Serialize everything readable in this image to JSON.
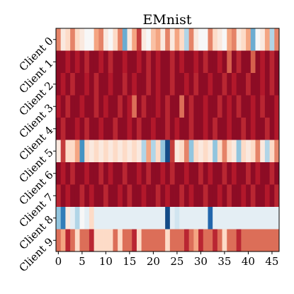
{
  "chart_data": {
    "type": "heatmap",
    "title": "EMnist",
    "xlabel": "",
    "ylabel": "",
    "rows": [
      "Client 0",
      "Client 1",
      "Client 2",
      "Client 3",
      "Client 4",
      "Client 5",
      "Client 6",
      "Client 7",
      "Client 8",
      "Client 9"
    ],
    "columns": [
      0,
      1,
      2,
      3,
      4,
      5,
      6,
      7,
      8,
      9,
      10,
      11,
      12,
      13,
      14,
      15,
      16,
      17,
      18,
      19,
      20,
      21,
      22,
      23,
      24,
      25,
      26,
      27,
      28,
      29,
      30,
      31,
      32,
      33,
      34,
      35,
      36,
      37,
      38,
      39,
      40,
      41,
      42,
      43,
      44,
      45,
      46
    ],
    "x_ticks": [
      "0",
      "5",
      "10",
      "15",
      "20",
      "25",
      "30",
      "35",
      "40",
      "45"
    ],
    "x_tick_positions": [
      0,
      5,
      10,
      15,
      20,
      25,
      30,
      35,
      40,
      45
    ],
    "colormap": "RdBu_r",
    "value_range": [
      0,
      1
    ],
    "grid": false,
    "legend": "none",
    "values": [
      [
        0.75,
        0.55,
        0.6,
        0.75,
        0.6,
        0.55,
        0.5,
        0.5,
        0.7,
        0.75,
        0.55,
        0.5,
        0.6,
        0.75,
        0.25,
        0.55,
        0.7,
        0.85,
        0.55,
        0.5,
        0.65,
        0.7,
        0.55,
        0.75,
        0.55,
        0.7,
        0.6,
        0.35,
        0.75,
        0.55,
        0.5,
        0.5,
        0.75,
        0.6,
        0.55,
        0.5,
        0.7,
        0.75,
        0.55,
        0.6,
        0.7,
        0.25,
        0.5,
        0.55,
        0.7,
        0.35,
        0.75
      ],
      [
        0.95,
        0.95,
        0.9,
        0.95,
        0.9,
        0.95,
        0.88,
        0.95,
        0.95,
        0.9,
        0.95,
        0.88,
        0.95,
        0.95,
        0.9,
        0.95,
        0.95,
        0.9,
        0.95,
        0.88,
        0.95,
        0.9,
        0.95,
        0.95,
        0.88,
        0.95,
        0.9,
        0.95,
        0.95,
        0.9,
        0.95,
        0.88,
        0.95,
        0.95,
        0.9,
        0.95,
        0.8,
        0.95,
        0.88,
        0.95,
        0.95,
        0.8,
        0.95,
        0.9,
        0.95,
        0.88,
        0.95
      ],
      [
        0.95,
        0.9,
        0.95,
        0.88,
        0.95,
        0.95,
        0.9,
        0.95,
        0.88,
        0.95,
        0.95,
        0.9,
        0.95,
        0.95,
        0.88,
        0.95,
        0.9,
        0.95,
        0.95,
        0.88,
        0.95,
        0.9,
        0.95,
        0.95,
        0.88,
        0.95,
        0.95,
        0.9,
        0.95,
        0.88,
        0.95,
        0.95,
        0.9,
        0.95,
        0.95,
        0.88,
        0.95,
        0.9,
        0.95,
        0.95,
        0.88,
        0.95,
        0.95,
        0.9,
        0.95,
        0.88,
        0.95
      ],
      [
        0.9,
        0.95,
        0.88,
        0.95,
        0.95,
        0.9,
        0.95,
        0.95,
        0.88,
        0.95,
        0.9,
        0.95,
        0.95,
        0.88,
        0.95,
        0.9,
        0.78,
        0.95,
        0.88,
        0.95,
        0.95,
        0.9,
        0.95,
        0.88,
        0.95,
        0.95,
        0.78,
        0.95,
        0.88,
        0.95,
        0.95,
        0.9,
        0.95,
        0.95,
        0.88,
        0.95,
        0.9,
        0.95,
        0.88,
        0.95,
        0.95,
        0.9,
        0.95,
        0.88,
        0.95,
        0.95,
        0.9
      ],
      [
        0.95,
        0.88,
        0.95,
        0.95,
        0.9,
        0.95,
        0.88,
        0.95,
        0.95,
        0.9,
        0.95,
        0.95,
        0.88,
        0.95,
        0.95,
        0.9,
        0.95,
        0.88,
        0.95,
        0.95,
        0.9,
        0.95,
        0.95,
        0.88,
        0.95,
        0.9,
        0.95,
        0.95,
        0.88,
        0.95,
        0.95,
        0.9,
        0.95,
        0.88,
        0.95,
        0.95,
        0.9,
        0.95,
        0.95,
        0.88,
        0.95,
        0.9,
        0.95,
        0.95,
        0.88,
        0.95,
        0.9
      ],
      [
        0.55,
        0.85,
        0.6,
        0.6,
        0.7,
        0.2,
        0.6,
        0.55,
        0.6,
        0.55,
        0.6,
        0.55,
        0.6,
        0.55,
        0.6,
        0.55,
        0.6,
        0.55,
        0.35,
        0.7,
        0.35,
        0.6,
        0.3,
        0.05,
        0.85,
        0.55,
        0.6,
        0.75,
        0.3,
        0.6,
        0.55,
        0.6,
        0.55,
        0.3,
        0.6,
        0.75,
        0.6,
        0.55,
        0.3,
        0.6,
        0.55,
        0.6,
        0.75,
        0.55,
        0.35,
        0.6,
        0.75
      ],
      [
        0.95,
        0.9,
        0.95,
        0.88,
        0.95,
        0.95,
        0.9,
        0.95,
        0.95,
        0.88,
        0.95,
        0.9,
        0.95,
        0.95,
        0.88,
        0.95,
        0.95,
        0.9,
        0.95,
        0.88,
        0.95,
        0.95,
        0.9,
        0.95,
        0.88,
        0.95,
        0.95,
        0.9,
        0.95,
        0.95,
        0.88,
        0.95,
        0.9,
        0.95,
        0.95,
        0.88,
        0.95,
        0.9,
        0.95,
        0.95,
        0.88,
        0.95,
        0.9,
        0.95,
        0.95,
        0.88,
        0.95
      ],
      [
        0.88,
        0.95,
        0.9,
        0.95,
        0.95,
        0.88,
        0.95,
        0.9,
        0.95,
        0.95,
        0.88,
        0.95,
        0.95,
        0.9,
        0.95,
        0.88,
        0.95,
        0.95,
        0.9,
        0.95,
        0.95,
        0.88,
        0.95,
        0.9,
        0.95,
        0.95,
        0.88,
        0.95,
        0.9,
        0.95,
        0.95,
        0.88,
        0.95,
        0.95,
        0.9,
        0.95,
        0.88,
        0.95,
        0.95,
        0.9,
        0.95,
        0.88,
        0.95,
        0.95,
        0.9,
        0.95,
        0.88
      ],
      [
        0.3,
        0.15,
        0.55,
        0.45,
        0.35,
        0.5,
        0.45,
        0.6,
        0.45,
        0.45,
        0.45,
        0.45,
        0.45,
        0.45,
        0.45,
        0.45,
        0.45,
        0.45,
        0.45,
        0.45,
        0.45,
        0.45,
        0.45,
        0.05,
        0.45,
        0.4,
        0.45,
        0.45,
        0.45,
        0.45,
        0.45,
        0.45,
        0.1,
        0.45,
        0.45,
        0.45,
        0.45,
        0.45,
        0.45,
        0.45,
        0.45,
        0.45,
        0.45,
        0.45,
        0.45,
        0.45,
        0.45
      ],
      [
        0.78,
        0.7,
        0.88,
        0.78,
        0.6,
        0.78,
        0.78,
        0.88,
        0.6,
        0.6,
        0.6,
        0.6,
        0.78,
        0.6,
        0.78,
        0.78,
        0.88,
        0.6,
        0.78,
        0.78,
        0.78,
        0.78,
        0.78,
        0.6,
        0.78,
        0.78,
        0.78,
        0.88,
        0.78,
        0.7,
        0.88,
        0.78,
        0.78,
        0.88,
        0.78,
        0.6,
        0.78,
        0.78,
        0.88,
        0.78,
        0.78,
        0.78,
        0.78,
        0.78,
        0.78,
        0.78,
        0.78
      ]
    ]
  }
}
